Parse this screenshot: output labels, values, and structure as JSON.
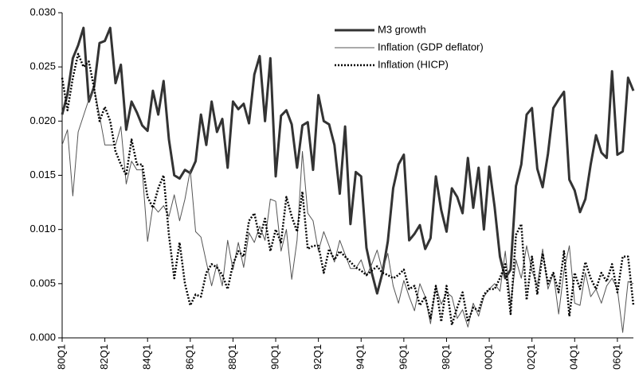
{
  "chart_data": {
    "type": "line",
    "categories": [
      "80Q1",
      null,
      null,
      null,
      null,
      null,
      null,
      null,
      "82Q1",
      null,
      null,
      null,
      null,
      null,
      null,
      null,
      "84Q1",
      null,
      null,
      null,
      null,
      null,
      null,
      null,
      "86Q1",
      null,
      null,
      null,
      null,
      null,
      null,
      null,
      "88Q1",
      null,
      null,
      null,
      null,
      null,
      null,
      null,
      "90Q1",
      null,
      null,
      null,
      null,
      null,
      null,
      null,
      "92Q1",
      null,
      null,
      null,
      null,
      null,
      null,
      null,
      "94Q1",
      null,
      null,
      null,
      null,
      null,
      null,
      null,
      "96Q1",
      null,
      null,
      null,
      null,
      null,
      null,
      null,
      "98Q1",
      null,
      null,
      null,
      null,
      null,
      null,
      null,
      "00Q1",
      null,
      null,
      null,
      null,
      null,
      null,
      null,
      "02Q1",
      null,
      null,
      null,
      null,
      null,
      null,
      null,
      "04Q1",
      null,
      null,
      null,
      null,
      null,
      null,
      null,
      "06Q1",
      null,
      null,
      null
    ],
    "series": [
      {
        "name": "M3 growth",
        "color": "#333333",
        "line_width": 3,
        "dash": "none",
        "values": [
          0.0206,
          0.0225,
          0.0258,
          0.027,
          0.0286,
          0.0218,
          0.0232,
          0.0272,
          0.0274,
          0.0286,
          0.0235,
          0.0252,
          0.0192,
          0.0218,
          0.0208,
          0.0196,
          0.0191,
          0.0228,
          0.0206,
          0.0237,
          0.0183,
          0.015,
          0.0147,
          0.0155,
          0.0152,
          0.0163,
          0.0206,
          0.0178,
          0.0218,
          0.019,
          0.0202,
          0.0157,
          0.0218,
          0.0211,
          0.0216,
          0.0198,
          0.0243,
          0.026,
          0.02,
          0.0258,
          0.0149,
          0.0205,
          0.021,
          0.0197,
          0.0157,
          0.0196,
          0.0199,
          0.0155,
          0.0224,
          0.02,
          0.0197,
          0.0178,
          0.0133,
          0.0195,
          0.0105,
          0.0153,
          0.0149,
          0.0083,
          0.006,
          0.0041,
          0.006,
          0.0089,
          0.0138,
          0.016,
          0.0169,
          0.009,
          0.0096,
          0.0104,
          0.0082,
          0.0092,
          0.0149,
          0.0118,
          0.0098,
          0.0138,
          0.013,
          0.0115,
          0.0166,
          0.012,
          0.0157,
          0.01,
          0.0158,
          0.0121,
          0.0075,
          0.0055,
          0.0063,
          0.014,
          0.016,
          0.0206,
          0.0212,
          0.0156,
          0.0139,
          0.017,
          0.0212,
          0.022,
          0.0227,
          0.0146,
          0.0136,
          0.0116,
          0.0128,
          0.016,
          0.0187,
          0.0171,
          0.0166,
          0.0246,
          0.0169,
          0.0172,
          0.024,
          0.0228
        ]
      },
      {
        "name": "Inflation (GDP deflator)",
        "color": "#555555",
        "line_width": 1,
        "dash": "none",
        "values": [
          0.0178,
          0.0192,
          0.0131,
          0.019,
          0.0205,
          0.022,
          0.023,
          0.0205,
          0.0178,
          0.0178,
          0.0178,
          0.0195,
          0.0142,
          0.0163,
          0.0155,
          0.0155,
          0.0089,
          0.0122,
          0.0116,
          0.0122,
          0.0112,
          0.0132,
          0.0108,
          0.0128,
          0.0155,
          0.0098,
          0.0093,
          0.007,
          0.0048,
          0.0068,
          0.0048,
          0.009,
          0.0063,
          0.0088,
          0.0065,
          0.0097,
          0.0088,
          0.0103,
          0.009,
          0.0128,
          0.0126,
          0.008,
          0.01,
          0.0054,
          0.009,
          0.0172,
          0.0115,
          0.0108,
          0.008,
          0.0098,
          0.0085,
          0.007,
          0.009,
          0.0077,
          0.0064,
          0.0064,
          0.0072,
          0.0057,
          0.0068,
          0.0081,
          0.0062,
          0.0078,
          0.0048,
          0.0032,
          0.0053,
          0.0038,
          0.0025,
          0.005,
          0.0038,
          0.0013,
          0.0048,
          0.0031,
          0.0042,
          0.0038,
          0.0018,
          0.0026,
          0.001,
          0.0032,
          0.002,
          0.0038,
          0.0045,
          0.005,
          0.0043,
          0.008,
          0.003,
          0.0072,
          0.0055,
          0.0085,
          0.0062,
          0.0048,
          0.0082,
          0.0045,
          0.006,
          0.0022,
          0.0062,
          0.0085,
          0.0032,
          0.003,
          0.006,
          0.0038,
          0.0045,
          0.0032,
          0.0048,
          0.0055,
          0.0045,
          0.0005,
          0.0052,
          0.005
        ]
      },
      {
        "name": "Inflation (HICP)",
        "color": "#000000",
        "line_width": 2.5,
        "dash": "2,2",
        "values": [
          0.024,
          0.021,
          0.024,
          0.0262,
          0.025,
          0.0255,
          0.023,
          0.02,
          0.0213,
          0.02,
          0.0172,
          0.016,
          0.015,
          0.0183,
          0.016,
          0.016,
          0.013,
          0.012,
          0.0138,
          0.015,
          0.0095,
          0.0055,
          0.0088,
          0.005,
          0.003,
          0.004,
          0.0038,
          0.006,
          0.0068,
          0.0065,
          0.0058,
          0.0045,
          0.0068,
          0.008,
          0.0075,
          0.0108,
          0.0115,
          0.0092,
          0.011,
          0.008,
          0.01,
          0.0088,
          0.013,
          0.0112,
          0.0098,
          0.0135,
          0.0082,
          0.0085,
          0.0085,
          0.006,
          0.0082,
          0.0072,
          0.008,
          0.0075,
          0.007,
          0.0065,
          0.0062,
          0.0058,
          0.0062,
          0.0066,
          0.006,
          0.0058,
          0.0055,
          0.0058,
          0.0063,
          0.0045,
          0.0048,
          0.003,
          0.0038,
          0.0018,
          0.0048,
          0.0015,
          0.0048,
          0.0012,
          0.0028,
          0.0042,
          0.0015,
          0.0028,
          0.0025,
          0.004,
          0.0045,
          0.0045,
          0.0055,
          0.0068,
          0.0022,
          0.0095,
          0.0105,
          0.0035,
          0.0075,
          0.004,
          0.0078,
          0.005,
          0.006,
          0.0042,
          0.008,
          0.002,
          0.006,
          0.0045,
          0.007,
          0.0055,
          0.0045,
          0.006,
          0.0052,
          0.0068,
          0.0042,
          0.0075,
          0.0075,
          0.003
        ]
      }
    ],
    "ylim": [
      0,
      0.03
    ],
    "yticks": [
      {
        "value": 0,
        "label": "0.000"
      },
      {
        "value": 0.005,
        "label": "0.005"
      },
      {
        "value": 0.01,
        "label": "0.010"
      },
      {
        "value": 0.015,
        "label": "0.015"
      },
      {
        "value": 0.02,
        "label": "0.020"
      },
      {
        "value": 0.025,
        "label": "0.025"
      },
      {
        "value": 0.03,
        "label": "0.030"
      }
    ],
    "grid": false,
    "legend": "top"
  }
}
